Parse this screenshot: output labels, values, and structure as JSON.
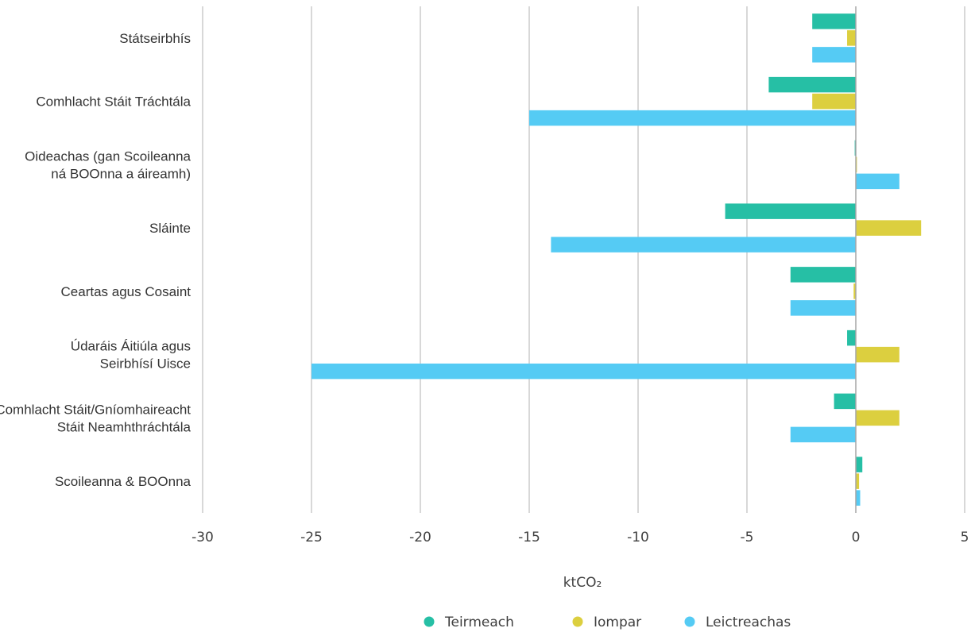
{
  "chart_data": {
    "type": "bar",
    "orientation": "horizontal",
    "categories": [
      [
        "Státseirbhís"
      ],
      [
        "Comhlacht Stáit Tráchtála"
      ],
      [
        "Oideachas (gan Scoileanna",
        "ná BOOnna a áireamh)"
      ],
      [
        "Sláinte"
      ],
      [
        "Ceartas agus Cosaint"
      ],
      [
        "Údaráis Áitiúla agus",
        "Seirbhísí Uisce"
      ],
      [
        "Comhlacht Stáit/Gníomhaireacht",
        "Stáit Neamhthráchtála"
      ],
      [
        "Scoileanna & BOOnna"
      ]
    ],
    "series": [
      {
        "name": "Teirmeach",
        "color": "#26bfa5",
        "values": [
          -2,
          -4,
          -0.05,
          -6,
          -3,
          -0.4,
          -1,
          0.3
        ]
      },
      {
        "name": "Iompar",
        "color": "#dccf3f",
        "values": [
          -0.4,
          -2,
          0.05,
          3,
          -0.1,
          2,
          2,
          0.15
        ]
      },
      {
        "name": "Leictreachas",
        "color": "#55cbf4",
        "values": [
          -2,
          -15,
          2,
          -14,
          -3,
          -25,
          -3,
          0.2
        ]
      }
    ],
    "xlim": [
      -30,
      5
    ],
    "xticks": [
      "-30",
      "-25",
      "-20",
      "-15",
      "-10",
      "-5",
      "0",
      "5"
    ],
    "xtick_values": [
      -30,
      -25,
      -20,
      -15,
      -10,
      -5,
      0,
      5
    ],
    "xlabel": "ktCO₂",
    "grid": true,
    "legend_position": "bottom"
  }
}
